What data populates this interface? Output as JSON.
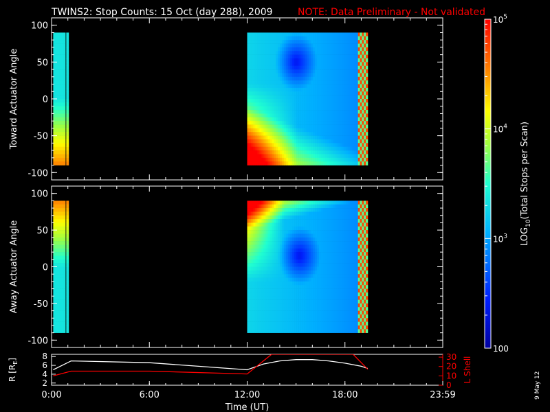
{
  "title": "TWINS2: Stop Counts: 15 Oct (day 288), 2009",
  "note": "NOTE: Data Preliminary - Not validated",
  "date_stamp": "9 May 12",
  "colors": {
    "background": "#000000",
    "axes": "#ffffff",
    "note": "#ff0000",
    "radius_line": "#ffffff",
    "lshell_line": "#ff0000"
  },
  "chart_data": [
    {
      "id": "toward",
      "type": "heatmap",
      "ylabel": "Toward Actuator Angle",
      "ylim": [
        -110,
        110
      ],
      "yticks": [
        100,
        50,
        0,
        -50,
        -100
      ],
      "xlim": [
        0,
        24
      ],
      "data_segments": [
        [
          0.1,
          0.85
        ],
        [
          0.9,
          1.05
        ],
        [
          12.0,
          18.8
        ],
        [
          18.8,
          19.4
        ]
      ],
      "angle_range": [
        -90,
        90
      ],
      "notes": "Counts highest (red/orange) near -50 to -90 deg in first segment; 12:00-19:00 segment shows yellow/orange wedge at low angles near 12:00-14:00, blue depletion around 30-80 deg from 13:00-15:00, cyan background, striped red near 18:30-19:30"
    },
    {
      "id": "away",
      "type": "heatmap",
      "ylabel": "Away Actuator Angle",
      "ylim": [
        -110,
        110
      ],
      "yticks": [
        100,
        50,
        0,
        -50,
        -100
      ],
      "xlim": [
        0,
        24
      ],
      "data_segments": [
        [
          0.1,
          0.85
        ],
        [
          0.9,
          1.05
        ],
        [
          12.0,
          18.8
        ],
        [
          18.8,
          19.4
        ]
      ],
      "angle_range": [
        -90,
        90
      ],
      "notes": "Red/orange at high angles (60-90 deg) near 0:00 and 12:00-13:30; dark blue depletion 0-40 deg from 14:00-16:00; striped red near 18:30-19:30"
    },
    {
      "id": "colorbar",
      "type": "heatmap",
      "label": "LOG10(Total Stops per Scan)",
      "label_prefix": "LOG",
      "label_sub": "10",
      "label_suffix": "(Total Stops per Scan)",
      "scale": "log",
      "range": [
        100,
        100000
      ],
      "ticks": [
        {
          "value": 100,
          "base": "100",
          "exp": ""
        },
        {
          "value": 1000,
          "base": "10",
          "exp": "3"
        },
        {
          "value": 10000,
          "base": "10",
          "exp": "4"
        },
        {
          "value": 100000,
          "base": "10",
          "exp": "5"
        }
      ]
    },
    {
      "id": "orbit",
      "type": "line",
      "ylabel_left": "R [RE]",
      "ylabel_left_prefix": "R [R",
      "ylabel_left_sub": "E",
      "ylabel_left_suffix": "]",
      "ylabel_right": "L Shell",
      "ylim_left": [
        1.5,
        8.5
      ],
      "yticks_left": [
        2,
        4,
        6,
        8
      ],
      "ylim_right": [
        0,
        33
      ],
      "yticks_right": [
        0,
        10,
        20,
        30
      ],
      "xlabel": "Time (UT)",
      "xlim": [
        0,
        24
      ],
      "xticks": [
        "0:00",
        "6:00",
        "12:00",
        "18:00",
        "23:59"
      ],
      "series": [
        {
          "name": "R",
          "axis": "left",
          "points": [
            [
              0.1,
              5.0
            ],
            [
              1.2,
              7.0
            ],
            [
              6,
              6.6
            ],
            [
              12.0,
              5.0
            ],
            [
              13,
              6.3
            ],
            [
              14,
              7.0
            ],
            [
              15,
              7.3
            ],
            [
              16,
              7.3
            ],
            [
              17,
              7.0
            ],
            [
              18,
              6.5
            ],
            [
              19,
              5.8
            ],
            [
              19.4,
              5.3
            ]
          ]
        },
        {
          "name": "L Shell",
          "axis": "right",
          "points": [
            [
              0.1,
              10
            ],
            [
              1.2,
              15
            ],
            [
              6,
              15
            ],
            [
              12.0,
              12.0
            ],
            [
              13.5,
              33
            ],
            [
              18.5,
              33
            ],
            [
              19.4,
              17
            ]
          ]
        }
      ]
    }
  ]
}
